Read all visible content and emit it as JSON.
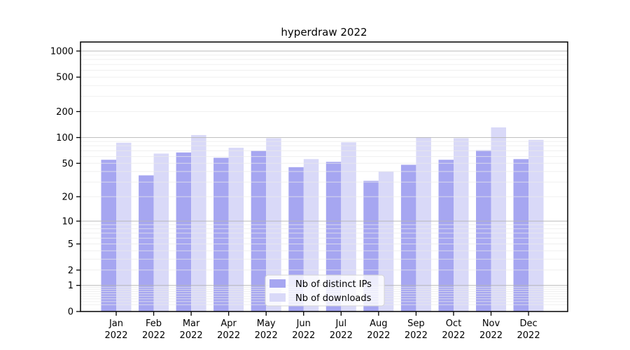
{
  "chart_data": {
    "type": "bar",
    "title": "hyperdraw 2022",
    "xlabel": "",
    "ylabel": "",
    "yscale": "log1p",
    "yticks": [
      0,
      1,
      2,
      5,
      10,
      20,
      50,
      100,
      200,
      500,
      1000
    ],
    "ylim": [
      0,
      1273
    ],
    "grid": "on",
    "legend_position": "bottom-center-inside",
    "categories_line1": [
      "Jan",
      "Feb",
      "Mar",
      "Apr",
      "May",
      "Jun",
      "Jul",
      "Aug",
      "Sep",
      "Oct",
      "Nov",
      "Dec"
    ],
    "categories_line2": [
      "2022",
      "2022",
      "2022",
      "2022",
      "2022",
      "2022",
      "2022",
      "2022",
      "2022",
      "2022",
      "2022",
      "2022"
    ],
    "series": [
      {
        "name": "Nb of distinct IPs",
        "color": "#a6a6f1",
        "values": [
          55,
          36,
          67,
          58,
          70,
          45,
          52,
          31,
          48,
          55,
          71,
          56
        ]
      },
      {
        "name": "Nb of downloads",
        "color": "#d9d9f8",
        "values": [
          87,
          65,
          107,
          76,
          98,
          56,
          88,
          40,
          101,
          98,
          131,
          94
        ]
      }
    ],
    "colors": {
      "spine": "#000000",
      "grid_major": "#b5b5b5",
      "grid_minor": "#e9e9e9",
      "legend_border": "#d4d4d4"
    }
  }
}
